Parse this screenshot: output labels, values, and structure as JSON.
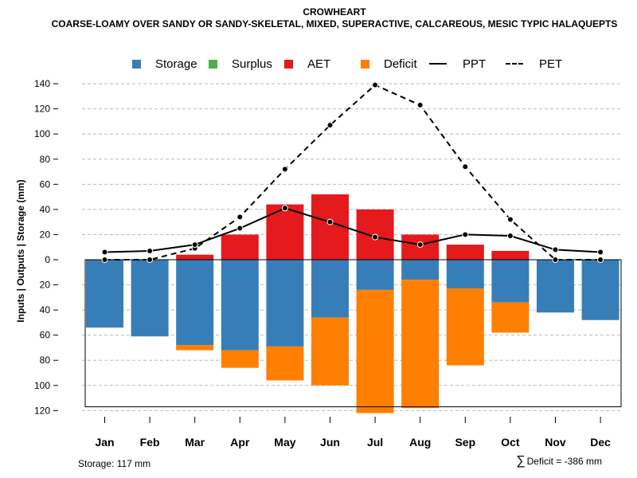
{
  "header": {
    "title": "CROWHEART",
    "subtitle": "COARSE-LOAMY OVER SANDY OR SANDY-SKELETAL, MIXED, SUPERACTIVE, CALCAREOUS, MESIC TYPIC HALAQUEPTS"
  },
  "legend": {
    "storage": "Storage",
    "surplus": "Surplus",
    "aet": "AET",
    "deficit": "Deficit",
    "ppt": "PPT",
    "pet": "PET"
  },
  "colors": {
    "storage": "#377eb8",
    "surplus": "#4daf4a",
    "aet": "#e41a1c",
    "deficit": "#ff7f00",
    "line": "#000000",
    "grid": "#bbbbbb"
  },
  "footer": {
    "storage_text": "Storage: 117 mm",
    "deficit_symbol": "∑",
    "deficit_text": "Deficit = -386 mm"
  },
  "chart_data": {
    "type": "bar",
    "title": "CROWHEART",
    "ylabel": "Inputs | Outputs | Storage    (mm)",
    "categories": [
      "Jan",
      "Feb",
      "Mar",
      "Apr",
      "May",
      "Jun",
      "Jul",
      "Aug",
      "Sep",
      "Oct",
      "Nov",
      "Dec"
    ],
    "yticks": [
      140,
      120,
      100,
      80,
      60,
      40,
      20,
      0,
      -20,
      -40,
      -60,
      -80,
      -100,
      -120
    ],
    "ytick_labels": [
      "140",
      "120",
      "100",
      "80",
      "60",
      "40",
      "20",
      "0",
      "20",
      "40",
      "60",
      "80",
      "100",
      "120"
    ],
    "ylim": [
      -120,
      140
    ],
    "grid": true,
    "storage_capacity": 117,
    "series": [
      {
        "name": "AET",
        "values": [
          0,
          0,
          4,
          20,
          44,
          52,
          40,
          20,
          12,
          7,
          0,
          0
        ]
      },
      {
        "name": "Storage",
        "values": [
          -54,
          -61,
          -68,
          -72,
          -69,
          -46,
          -24,
          -16,
          -23,
          -34,
          -42,
          -48
        ]
      },
      {
        "name": "Deficit",
        "values": [
          0,
          0,
          -4,
          -14,
          -27,
          -54,
          -98,
          -102,
          -61,
          -24,
          0,
          0
        ]
      },
      {
        "name": "PPT",
        "values": [
          6,
          7,
          12,
          25,
          41,
          30,
          18,
          12,
          20,
          19,
          8,
          6
        ]
      },
      {
        "name": "PET",
        "values": [
          0,
          0,
          9,
          34,
          72,
          107,
          139,
          123,
          74,
          32,
          0,
          0
        ]
      }
    ]
  }
}
